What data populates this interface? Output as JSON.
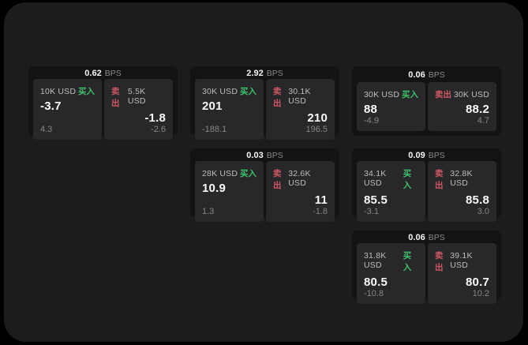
{
  "labels": {
    "bps_unit": "BPS",
    "buy": "买入",
    "sell": "卖出"
  },
  "colors": {
    "canvas": "#000000",
    "page_background": "#1c1c1e",
    "card_background": "#131314",
    "panel_background": "#28282a",
    "buy_green": "#3cc268",
    "sell_red": "#d15864",
    "value_white": "#fafafb",
    "muted_grey": "#87878a"
  },
  "cards": [
    {
      "bps": "0.62",
      "buy": {
        "amount": "10K USD",
        "price": "-3.7",
        "change": "4.3"
      },
      "sell": {
        "amount": "5.5K USD",
        "price": "-1.8",
        "change": "-2.6"
      }
    },
    {
      "bps": "2.92",
      "buy": {
        "amount": "30K USD",
        "price": "201",
        "change": "-188.1"
      },
      "sell": {
        "amount": "30.1K USD",
        "price": "210",
        "change": "196.5"
      }
    },
    {
      "bps": "0.06",
      "buy": {
        "amount": "30K USD",
        "price": "88",
        "change": "-4.9"
      },
      "sell": {
        "amount": "30K USD",
        "price": "88.2",
        "change": "4.7"
      }
    },
    {
      "bps": "0.03",
      "buy": {
        "amount": "28K USD",
        "price": "10.9",
        "change": "1.3"
      },
      "sell": {
        "amount": "32.6K USD",
        "price": "11",
        "change": "-1.8"
      }
    },
    {
      "bps": "0.09",
      "buy": {
        "amount": "34.1K USD",
        "price": "85.5",
        "change": "-3.1"
      },
      "sell": {
        "amount": "32.8K USD",
        "price": "85.8",
        "change": "3.0"
      }
    },
    {
      "bps": "0.06",
      "buy": {
        "amount": "31.8K USD",
        "price": "80.5",
        "change": "-10.8"
      },
      "sell": {
        "amount": "39.1K USD",
        "price": "80.7",
        "change": "10.2"
      }
    }
  ]
}
